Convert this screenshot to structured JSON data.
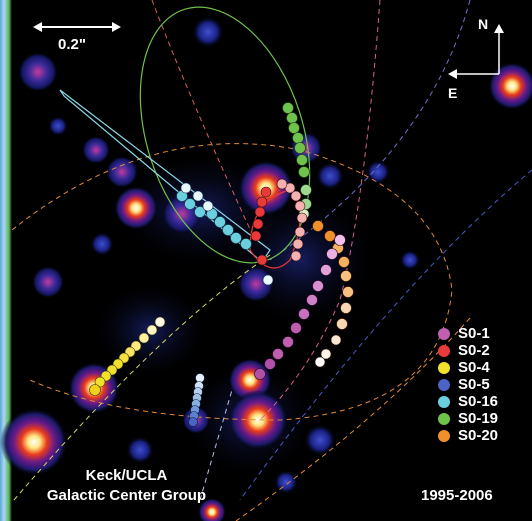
{
  "scale_bar": {
    "label": "0.2\""
  },
  "compass": {
    "north": "N",
    "east": "E"
  },
  "legend": [
    {
      "name": "S0-1",
      "color": "#c05fb0"
    },
    {
      "name": "S0-2",
      "color": "#e83a3a"
    },
    {
      "name": "S0-4",
      "color": "#f2e12a"
    },
    {
      "name": "S0-5",
      "color": "#4a63c4"
    },
    {
      "name": "S0-16",
      "color": "#6ccfe0"
    },
    {
      "name": "S0-19",
      "color": "#6fc24a"
    },
    {
      "name": "S0-20",
      "color": "#f0902a"
    }
  ],
  "credit": {
    "line1": "Keck/UCLA",
    "line2": "Galactic Center Group"
  },
  "years": "1995-2006",
  "colors": {
    "background": "#000000",
    "text": "#ffffff"
  }
}
